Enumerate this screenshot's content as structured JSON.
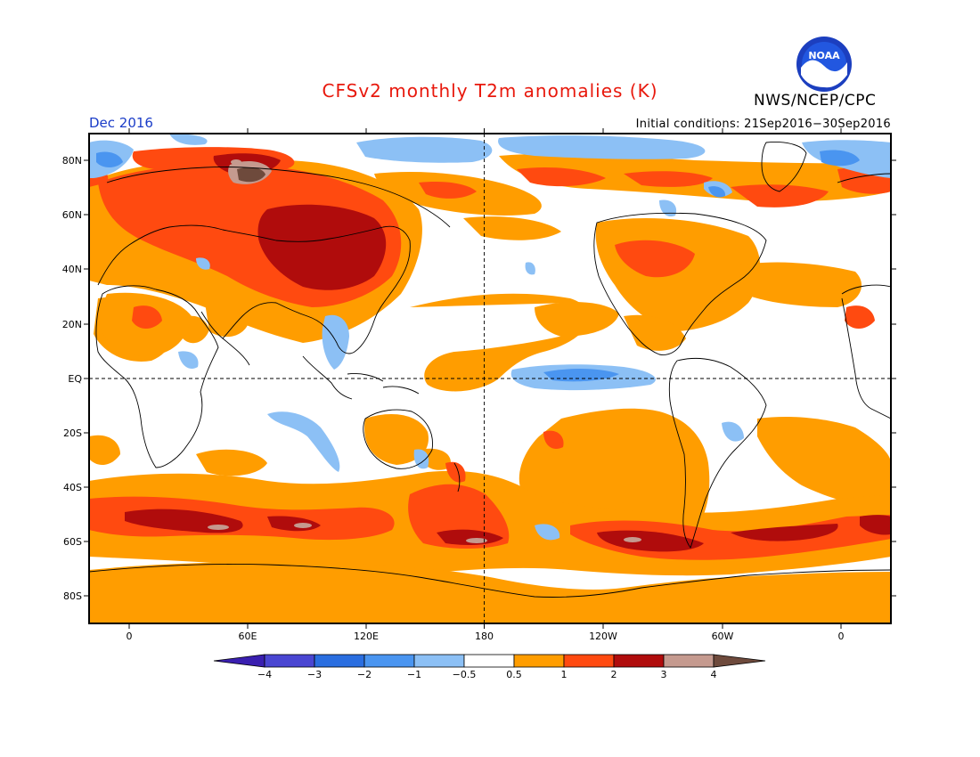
{
  "header": {
    "title": "CFSv2 monthly T2m anomalies (K)",
    "org": "NWS/NCEP/CPC",
    "month": "Dec 2016",
    "initial_conditions": "Initial conditions: 21Sep2016−30Sep2016",
    "logo_text": "NOAA"
  },
  "map": {
    "projection": "equirectangular",
    "lon_range": [
      -20,
      380
    ],
    "lat_range": [
      -90,
      90
    ],
    "lat_labels": [
      "80N",
      "60N",
      "40N",
      "20N",
      "EQ",
      "20S",
      "40S",
      "60S",
      "80S"
    ],
    "lon_labels": [
      "0",
      "60E",
      "120E",
      "180",
      "120W",
      "60W",
      "0"
    ]
  },
  "colorbar": {
    "labels": [
      "−4",
      "−3",
      "−2",
      "−1",
      "−0.5",
      "0.5",
      "1",
      "2",
      "3",
      "4"
    ],
    "colors": [
      "#3a1fb0",
      "#4a46d2",
      "#2a6ee0",
      "#4a95f0",
      "#8cc0f5",
      "#ffffff",
      "#ff9d00",
      "#ff4a10",
      "#b00c0c",
      "#c59a8f",
      "#6e4a3c"
    ]
  }
}
